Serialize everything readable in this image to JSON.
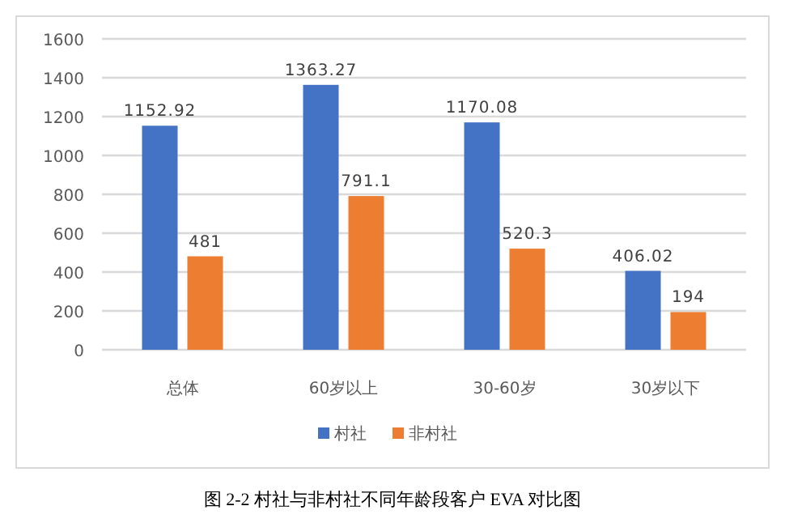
{
  "chart_data": {
    "type": "bar",
    "title": "图 2-2 村社与非村社不同年龄段客户 EVA 对比图",
    "categories": [
      "总体",
      "60岁以上",
      "30-60岁",
      "30岁以下"
    ],
    "series": [
      {
        "name": "村社",
        "color": "#4472c4",
        "values": [
          1152.92,
          1363.27,
          1170.08,
          406.02
        ]
      },
      {
        "name": "非村社",
        "color": "#ed7d31",
        "values": [
          481,
          791.1,
          520.3,
          194
        ]
      }
    ],
    "ylim": [
      0,
      1600
    ],
    "yticks": [
      0,
      200,
      400,
      600,
      800,
      1000,
      1200,
      1400,
      1600
    ],
    "grid": "y",
    "legend": "bottom",
    "data_labels": true
  }
}
